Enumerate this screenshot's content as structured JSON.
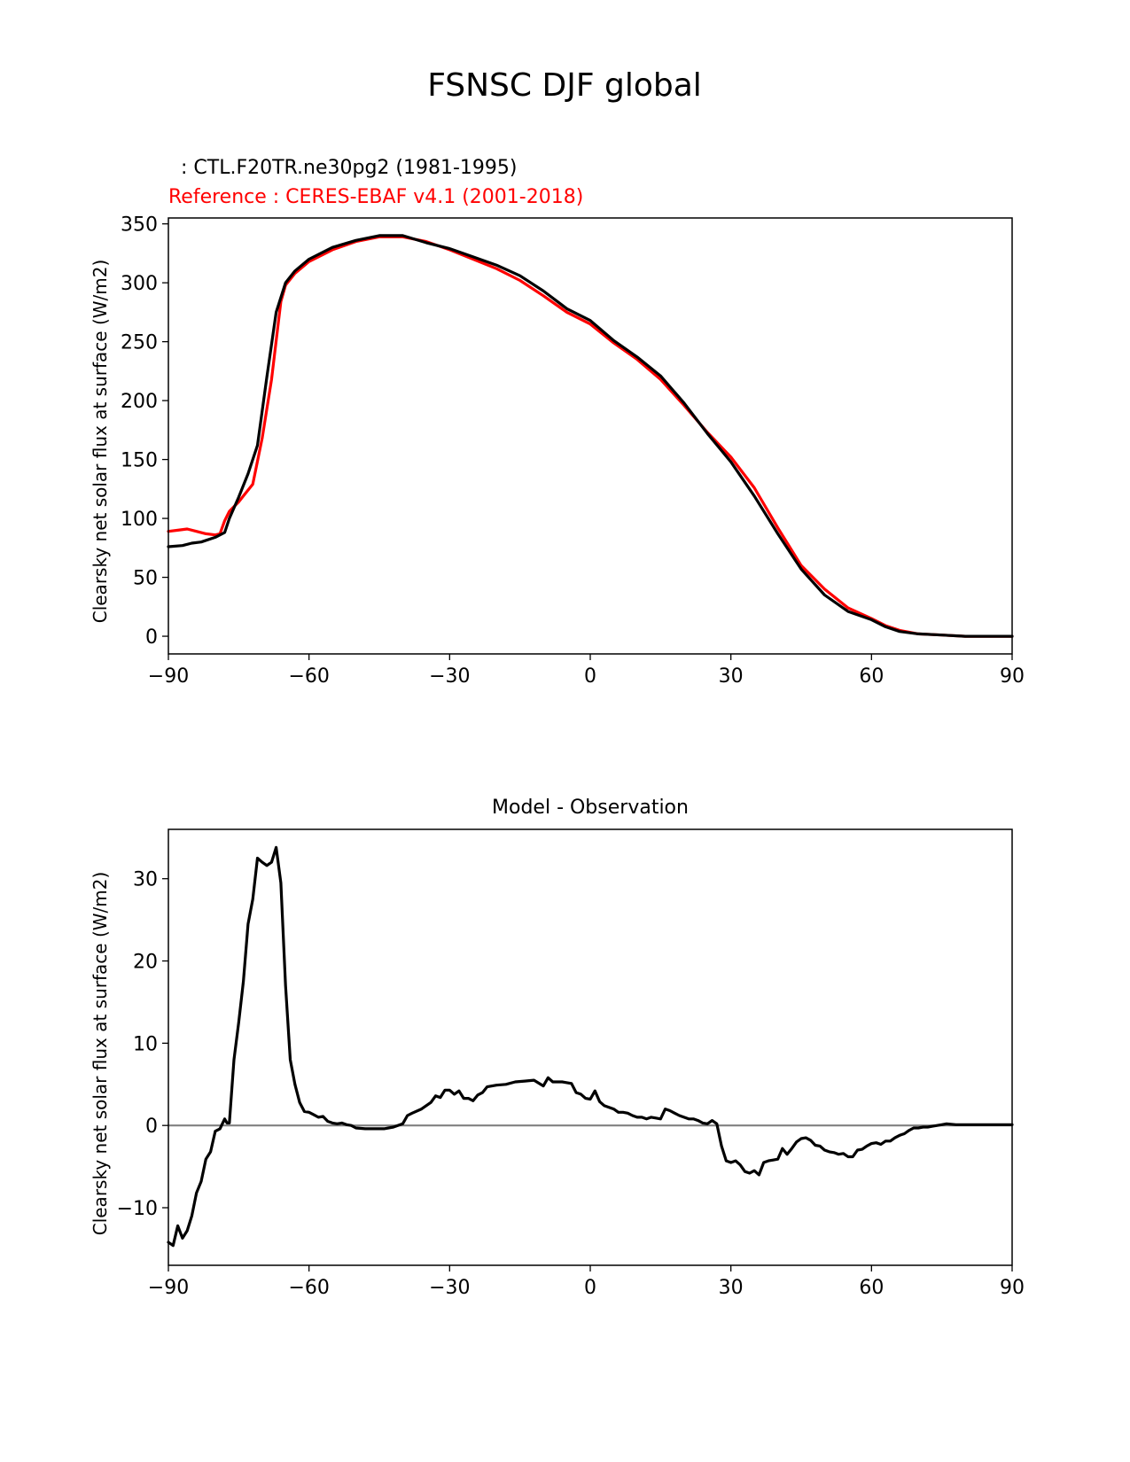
{
  "figure_title": "FSNSC DJF global",
  "chart_data": [
    {
      "type": "line",
      "test_label": "  : CTL.F20TR.ne30pg2 (1981-1995)",
      "ref_label": "Reference : CERES-EBAF v4.1 (2001-2018)",
      "title": "",
      "xlabel": "",
      "ylabel": "Clearsky net solar flux at surface (W/m2)",
      "xlim": [
        -90,
        90
      ],
      "ylim": [
        -15,
        355
      ],
      "xticks": [
        -90,
        -60,
        -30,
        0,
        30,
        60,
        90
      ],
      "xtick_labels": [
        "−90",
        "−60",
        "−30",
        "0",
        "30",
        "60",
        "90"
      ],
      "yticks": [
        0,
        50,
        100,
        150,
        200,
        250,
        300,
        350
      ],
      "ytick_labels": [
        "0",
        "50",
        "100",
        "150",
        "200",
        "250",
        "300",
        "350"
      ],
      "series": [
        {
          "name": "CTL.F20TR.ne30pg2 (1981-1995)",
          "color": "#000000",
          "x": [
            -90,
            -87,
            -85,
            -83,
            -80,
            -78,
            -77,
            -75,
            -73,
            -71,
            -69,
            -67,
            -65,
            -63,
            -60,
            -55,
            -50,
            -45,
            -40,
            -35,
            -30,
            -25,
            -20,
            -15,
            -10,
            -5,
            0,
            5,
            10,
            15,
            20,
            25,
            30,
            35,
            40,
            45,
            50,
            55,
            60,
            63,
            66,
            70,
            75,
            80,
            85,
            90
          ],
          "y": [
            76,
            77,
            79,
            80,
            84,
            88,
            100,
            118,
            138,
            162,
            220,
            275,
            300,
            310,
            320,
            330,
            336,
            340,
            340,
            334,
            329,
            322,
            315,
            306,
            293,
            278,
            268,
            251,
            237,
            221,
            198,
            172,
            148,
            119,
            87,
            57,
            35,
            21,
            14,
            8,
            4,
            2,
            1,
            0,
            0,
            0
          ]
        },
        {
          "name": "CERES-EBAF v4.1 (2001-2018)",
          "color": "#ff0000",
          "x": [
            -90,
            -88,
            -86,
            -84,
            -82,
            -80,
            -79,
            -78,
            -77,
            -76,
            -75,
            -74,
            -72,
            -70,
            -68,
            -66,
            -65,
            -63,
            -60,
            -55,
            -50,
            -45,
            -40,
            -35,
            -30,
            -25,
            -20,
            -15,
            -10,
            -5,
            0,
            5,
            10,
            15,
            20,
            25,
            30,
            35,
            40,
            45,
            50,
            55,
            60,
            63,
            66,
            70,
            75,
            80,
            85,
            90
          ],
          "y": [
            89,
            90,
            91,
            89,
            87,
            86,
            87,
            98,
            106,
            110,
            114,
            119,
            129,
            168,
            218,
            284,
            298,
            308,
            318,
            328,
            335,
            339,
            339,
            335,
            328,
            320,
            312,
            302,
            289,
            275,
            265,
            249,
            235,
            218,
            196,
            173,
            152,
            126,
            92,
            60,
            40,
            24,
            15,
            9,
            5,
            2,
            1,
            0,
            0,
            0
          ]
        }
      ]
    },
    {
      "type": "line",
      "title": "Model - Observation",
      "xlabel": "",
      "ylabel": "Clearsky net solar flux at surface (W/m2)",
      "xlim": [
        -90,
        90
      ],
      "ylim": [
        -17,
        36
      ],
      "xticks": [
        -90,
        -60,
        -30,
        0,
        30,
        60,
        90
      ],
      "xtick_labels": [
        "−90",
        "−60",
        "−30",
        "0",
        "30",
        "60",
        "90"
      ],
      "yticks": [
        -10,
        0,
        10,
        20,
        30
      ],
      "ytick_labels": [
        "−10",
        "0",
        "10",
        "20",
        "30"
      ],
      "zero_line_color": "#808080",
      "series": [
        {
          "name": "Model - Observation",
          "color": "#000000",
          "x": [
            -90,
            -89,
            -88,
            -87,
            -86,
            -85,
            -84,
            -83,
            -82,
            -81,
            -80,
            -79,
            -78,
            -77.5,
            -77,
            -76,
            -75,
            -74,
            -73,
            -72,
            -71,
            -70,
            -69,
            -68,
            -67,
            -66,
            -65,
            -64,
            -63,
            -62,
            -61,
            -60,
            -59,
            -58,
            -57,
            -56,
            -55,
            -54,
            -53,
            -52,
            -51,
            -50,
            -48,
            -46,
            -44,
            -42,
            -40,
            -39,
            -38,
            -36,
            -34,
            -33,
            -32,
            -31,
            -30,
            -29,
            -28,
            -27,
            -26,
            -25,
            -24,
            -23,
            -22,
            -20,
            -18,
            -16,
            -14,
            -12,
            -10,
            -9,
            -8,
            -7,
            -6,
            -4,
            -3,
            -2,
            -1,
            0,
            1,
            2,
            3,
            5,
            6,
            7,
            8,
            9,
            10,
            11,
            12,
            13,
            14,
            15,
            16,
            17,
            18,
            19,
            20,
            21,
            22,
            23,
            24,
            25,
            26,
            27,
            28,
            29,
            30,
            31,
            32,
            33,
            34,
            35,
            36,
            37,
            38,
            39,
            40,
            41,
            42,
            43,
            44,
            45,
            46,
            47,
            48,
            49,
            50,
            51,
            52,
            53,
            54,
            55,
            56,
            57,
            58,
            59,
            60,
            61,
            62,
            63,
            64,
            65,
            66,
            67,
            68,
            69,
            70,
            71,
            72,
            73,
            74,
            75,
            76,
            78,
            80,
            85,
            90
          ],
          "y": [
            -14.2,
            -14.6,
            -12.2,
            -13.7,
            -12.8,
            -11.0,
            -8.2,
            -6.8,
            -4.1,
            -3.2,
            -0.7,
            -0.4,
            0.8,
            0.3,
            0.3,
            8.0,
            12.5,
            17.5,
            24.5,
            27.5,
            32.5,
            32.0,
            31.6,
            32.0,
            33.8,
            29.5,
            17.0,
            8.0,
            5.0,
            2.8,
            1.7,
            1.6,
            1.3,
            1.0,
            1.1,
            0.5,
            0.3,
            0.2,
            0.3,
            0.1,
            0.0,
            -0.3,
            -0.4,
            -0.4,
            -0.4,
            -0.2,
            0.2,
            1.2,
            1.5,
            2.0,
            2.8,
            3.6,
            3.4,
            4.3,
            4.3,
            3.8,
            4.2,
            3.3,
            3.3,
            3.0,
            3.7,
            4.0,
            4.7,
            4.9,
            5.0,
            5.3,
            5.4,
            5.5,
            4.8,
            5.8,
            5.3,
            5.3,
            5.3,
            5.1,
            4.0,
            3.8,
            3.3,
            3.2,
            4.2,
            2.9,
            2.4,
            2.0,
            1.6,
            1.6,
            1.5,
            1.2,
            1.0,
            1.0,
            0.8,
            1.0,
            0.9,
            0.8,
            2.0,
            1.8,
            1.5,
            1.2,
            1.0,
            0.8,
            0.8,
            0.6,
            0.3,
            0.2,
            0.6,
            0.2,
            -2.5,
            -4.3,
            -4.5,
            -4.3,
            -4.8,
            -5.6,
            -5.8,
            -5.5,
            -6.0,
            -4.5,
            -4.3,
            -4.2,
            -4.1,
            -2.8,
            -3.5,
            -2.8,
            -2.0,
            -1.6,
            -1.5,
            -1.8,
            -2.4,
            -2.5,
            -3.0,
            -3.2,
            -3.3,
            -3.5,
            -3.4,
            -3.8,
            -3.8,
            -3.0,
            -2.9,
            -2.5,
            -2.2,
            -2.1,
            -2.3,
            -1.9,
            -1.9,
            -1.5,
            -1.2,
            -1.0,
            -0.6,
            -0.3,
            -0.3,
            -0.2,
            -0.2,
            -0.1,
            0.0,
            0.1,
            0.2,
            0.1,
            0.1,
            0.1,
            0.1
          ]
        }
      ]
    }
  ]
}
